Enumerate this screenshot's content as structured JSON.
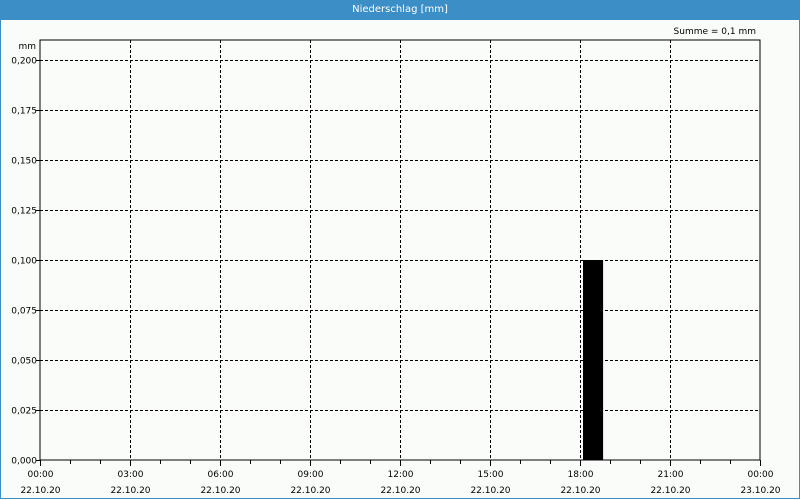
{
  "window": {
    "title": "Niederschlag [mm]"
  },
  "summary": "Summe = 0,1 mm",
  "chart_data": {
    "type": "bar",
    "title": "Niederschlag [mm]",
    "ylabel": "mm",
    "ylim": [
      0,
      0.2
    ],
    "yticks": [
      "0,000",
      "0,025",
      "0,050",
      "0,075",
      "0,100",
      "0,125",
      "0,150",
      "0,175",
      "0,200"
    ],
    "xlim": [
      "22.10.20 00:00",
      "23.10.20 00:00"
    ],
    "xticks": [
      {
        "time": "00:00",
        "date": "22.10.20"
      },
      {
        "time": "03:00",
        "date": "22.10.20"
      },
      {
        "time": "06:00",
        "date": "22.10.20"
      },
      {
        "time": "09:00",
        "date": "22.10.20"
      },
      {
        "time": "12:00",
        "date": "22.10.20"
      },
      {
        "time": "15:00",
        "date": "22.10.20"
      },
      {
        "time": "18:00",
        "date": "22.10.20"
      },
      {
        "time": "21:00",
        "date": "22.10.20"
      },
      {
        "time": "00:00",
        "date": "23.10.20"
      }
    ],
    "grid": true,
    "bars": [
      {
        "start": "22.10.20 18:00",
        "end": "22.10.20 19:00",
        "value": 0.1
      }
    ],
    "bar_color": "#000000"
  }
}
